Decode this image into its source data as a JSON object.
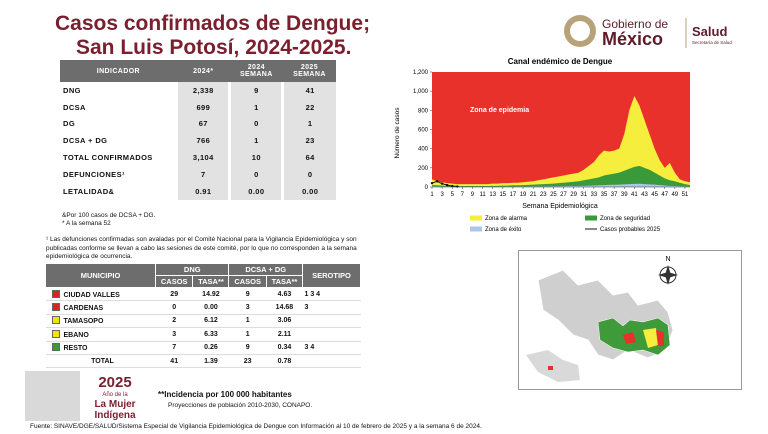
{
  "header": {
    "title_line1": "Casos confirmados de Dengue;",
    "title_line2": "San Luis Potosí, 2024-2025.",
    "gov_line1": "Gobierno de",
    "gov_line2": "México",
    "ministry": "Salud",
    "ministry_sub": "Secretaría de Salud"
  },
  "table": {
    "headers": [
      "INDICADOR",
      "2024*",
      "2024 SEMANA",
      "2025 SEMANA"
    ],
    "rows": [
      [
        "DNG",
        "2,338",
        "9",
        "41"
      ],
      [
        "DCSA",
        "699",
        "1",
        "22"
      ],
      [
        "DG",
        "67",
        "0",
        "1"
      ],
      [
        "DCSA + DG",
        "766",
        "1",
        "23"
      ],
      [
        "TOTAL CONFIRMADOS",
        "3,104",
        "10",
        "64"
      ],
      [
        "DEFUNCIONES¹",
        "7",
        "0",
        "0"
      ],
      [
        "LETALIDAD&",
        "0.91",
        "0.00",
        "0.00"
      ]
    ]
  },
  "table_notes": [
    "&Por 100 casos de DCSA + DG.",
    "* A la semana 52"
  ],
  "footnote": "¹ Las defunciones confirmadas son avaladas por el Comité Nacional para la Vigilancia Epidemiológica y son publicadas conforme se llevan a cabo las sesiones de este comité, por lo que no corresponden a la semana epidemiológica de ocurrencia.",
  "municipal_table": {
    "headers": [
      "MUNICIPIO",
      "DNG",
      "DCSA + DG",
      "SEROTIPO"
    ],
    "subheaders": [
      "CASOS",
      "TASA**",
      "CASOS",
      "TASA**"
    ],
    "rows": [
      {
        "municipio": "CIUDAD VALLES",
        "color": "#d7261e",
        "values": [
          "29",
          "14.92",
          "9",
          "4.63"
        ],
        "serotipo": "1  3  4"
      },
      {
        "municipio": "CARDENAS",
        "color": "#d7261e",
        "values": [
          "0",
          "0.00",
          "3",
          "14.68"
        ],
        "serotipo": "3"
      },
      {
        "municipio": "TAMASOPO",
        "color": "#f2e600",
        "values": [
          "2",
          "6.12",
          "1",
          "3.06"
        ]
      },
      {
        "municipio": "EBANO",
        "color": "#f2e600",
        "values": [
          "3",
          "6.33",
          "1",
          "2.11"
        ]
      },
      {
        "municipio": "RESTO",
        "color": "#3a9a3a",
        "values": [
          "7",
          "0.26",
          "9",
          "0.34"
        ],
        "serotipo": "3  4"
      }
    ],
    "total": {
      "label": "TOTAL",
      "values": [
        "41",
        "1.39",
        "23",
        "0.78"
      ]
    }
  },
  "notes": [
    "**Incidencia por 100 000 habitantes",
    "Proyecciones de población 2010-2030,  CONAPO."
  ],
  "logo": {
    "year": "2025",
    "line1": "Año de la",
    "line2": "La Mujer",
    "line3": "Indígena"
  },
  "map": {
    "north": "N"
  },
  "source": "Fuente: SINAVE/DGE/SALUD/Sistema Especial de Vigilancia Epidemiológica de Dengue con Información al 10 de febrero de 2025 y a la semana 6 de 2024.",
  "chart_data": {
    "type": "area",
    "title": "Canal endémico de Dengue",
    "ylabel": "Número de casos",
    "xlabel": "Semana Epidemiológica",
    "annotation": "Zona de epidemia",
    "background_color": "#e8312a",
    "x": [
      1,
      2,
      3,
      4,
      5,
      6,
      7,
      8,
      9,
      10,
      11,
      12,
      13,
      14,
      15,
      16,
      17,
      18,
      19,
      20,
      21,
      22,
      23,
      24,
      25,
      26,
      27,
      28,
      29,
      30,
      31,
      32,
      33,
      34,
      35,
      36,
      37,
      38,
      39,
      40,
      41,
      42,
      43,
      44,
      45,
      46,
      47,
      48,
      49,
      50,
      51,
      52
    ],
    "xlim": [
      1,
      52
    ],
    "xticks": [
      1,
      3,
      5,
      7,
      9,
      11,
      13,
      15,
      17,
      19,
      21,
      23,
      25,
      27,
      29,
      31,
      33,
      35,
      37,
      39,
      41,
      43,
      45,
      47,
      49,
      51
    ],
    "ylim": [
      0,
      1200
    ],
    "yticks": [
      0,
      200,
      400,
      600,
      800,
      {
        "value": 1000,
        "label": "1,000"
      },
      {
        "value": 1200,
        "label": "1,200"
      }
    ],
    "series": [
      {
        "name": "Zona de alarma",
        "color": "#f5ee3c",
        "values": [
          80,
          60,
          50,
          40,
          35,
          30,
          30,
          30,
          30,
          30,
          30,
          30,
          35,
          35,
          40,
          40,
          45,
          45,
          50,
          55,
          60,
          70,
          80,
          90,
          100,
          110,
          120,
          130,
          140,
          150,
          180,
          220,
          260,
          330,
          380,
          370,
          380,
          400,
          550,
          800,
          950,
          850,
          700,
          550,
          400,
          280,
          200,
          250,
          150,
          80,
          60,
          50
        ]
      },
      {
        "name": "Zona de seguridad",
        "color": "#3a9a3a",
        "values": [
          20,
          18,
          15,
          12,
          10,
          10,
          10,
          10,
          10,
          10,
          10,
          10,
          12,
          12,
          15,
          15,
          18,
          18,
          20,
          22,
          25,
          28,
          30,
          32,
          35,
          40,
          45,
          50,
          55,
          60,
          70,
          80,
          90,
          100,
          120,
          130,
          140,
          150,
          170,
          190,
          210,
          220,
          200,
          180,
          150,
          120,
          90,
          70,
          60,
          45,
          30,
          20
        ]
      },
      {
        "name": "Zona de éxito",
        "color": "#a9c8e8",
        "values": [
          8,
          6,
          5,
          4,
          4,
          3,
          3,
          3,
          3,
          3,
          3,
          3,
          3,
          3,
          4,
          4,
          4,
          5,
          5,
          5,
          6,
          6,
          7,
          7,
          8,
          8,
          9,
          10,
          10,
          11,
          12,
          14,
          16,
          18,
          20,
          22,
          24,
          25,
          28,
          30,
          32,
          34,
          30,
          28,
          25,
          20,
          16,
          12,
          10,
          8,
          6,
          5
        ]
      },
      {
        "name": "Casos probables 2025",
        "color": "#111111",
        "line": true,
        "values": [
          40,
          60,
          35,
          20,
          10,
          5,
          null,
          null,
          null,
          null,
          null,
          null,
          null,
          null,
          null,
          null,
          null,
          null,
          null,
          null,
          null,
          null,
          null,
          null,
          null,
          null,
          null,
          null,
          null,
          null,
          null,
          null,
          null,
          null,
          null,
          null,
          null,
          null,
          null,
          null,
          null,
          null,
          null,
          null,
          null,
          null,
          null,
          null,
          null,
          null,
          null,
          null
        ]
      }
    ]
  }
}
